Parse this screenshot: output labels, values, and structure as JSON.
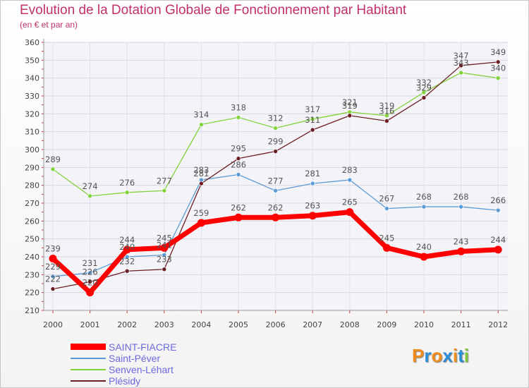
{
  "chart_data": {
    "type": "line",
    "title": "Evolution de la Dotation Globale de Fonctionnement par Habitant",
    "subtitle": "(en € et par an)",
    "categories": [
      "2000",
      "2001",
      "2002",
      "2003",
      "2004",
      "2005",
      "2006",
      "2007",
      "2008",
      "2009",
      "2010",
      "2011",
      "2012"
    ],
    "ylim": [
      210,
      360
    ],
    "yticks": [
      "210",
      "220",
      "230",
      "240",
      "250",
      "260",
      "270",
      "280",
      "290",
      "300",
      "310",
      "320",
      "330",
      "340",
      "350",
      "360"
    ],
    "grid": true,
    "legend_position": "bottom-left",
    "series": [
      {
        "name": "SAINT-FIACRE",
        "color": "#ff0000",
        "values": [
          239,
          220,
          244,
          245,
          259,
          262,
          262,
          263,
          265,
          245,
          240,
          243,
          244
        ]
      },
      {
        "name": "Saint-Péver",
        "color": "#5b9bd5",
        "values": [
          229,
          231,
          240,
          241,
          283,
          286,
          277,
          281,
          283,
          267,
          268,
          268,
          266
        ]
      },
      {
        "name": "Senven-Léhart",
        "color": "#82d23c",
        "values": [
          289,
          274,
          276,
          277,
          314,
          318,
          312,
          317,
          321,
          319,
          332,
          343,
          340
        ]
      },
      {
        "name": "Plésidy",
        "color": "#6b1e24",
        "values": [
          222,
          226,
          232,
          233,
          281,
          295,
          299,
          311,
          319,
          316,
          329,
          347,
          349
        ]
      }
    ]
  },
  "legend": {
    "items": [
      "SAINT-FIACRE",
      "Saint-Péver",
      "Senven-Léhart",
      "Plésidy"
    ]
  },
  "logo": {
    "text": "Proxiti",
    "colors": [
      "#f08c1e",
      "#2a8fd6",
      "#f08c1e",
      "#2a8fd6",
      "#f08c1e",
      "#2a8fd6",
      "#82c83c"
    ]
  }
}
